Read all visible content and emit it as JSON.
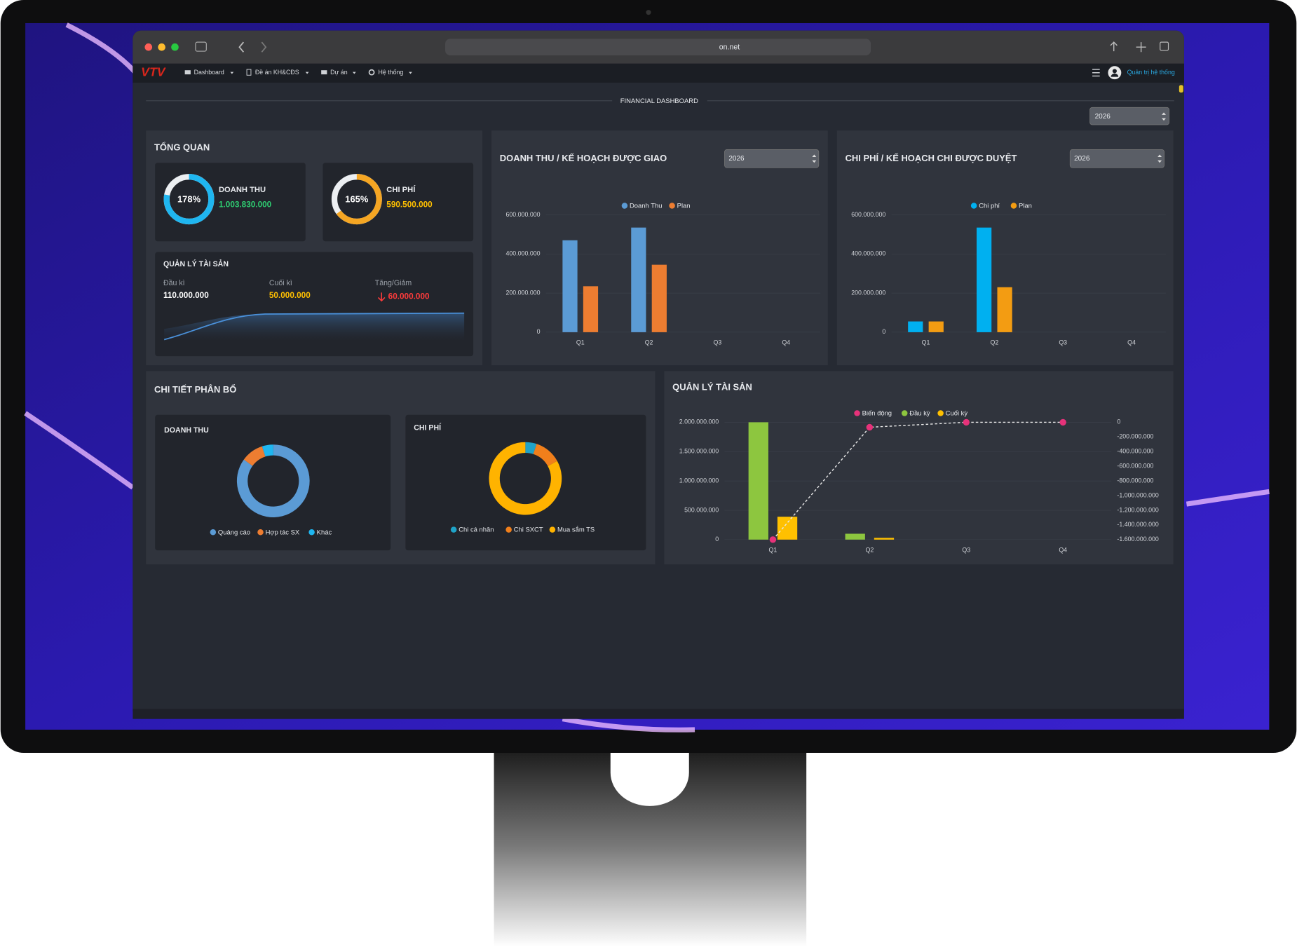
{
  "browser": {
    "url": "on.net"
  },
  "nav": {
    "logo": "VTV",
    "items": [
      "Dashboard",
      "Đề án KH&CĐS",
      "Dự án",
      "Hệ thống"
    ],
    "user": "Quản trị hệ thống"
  },
  "dashboard_title": "FINANCIAL DASHBOARD",
  "year": "2026",
  "overview": {
    "title": "TỔNG QUAN",
    "kpis": [
      {
        "name": "DOANH THU",
        "percent": 178,
        "percent_label": "178%",
        "amount": "1.003.830.000",
        "color": "#1fb6f0",
        "amount_color": "#2ecc71"
      },
      {
        "name": "CHI PHÍ",
        "percent": 165,
        "percent_label": "165%",
        "amount": "590.500.000",
        "color": "#f5a623",
        "amount_color": "#ffc000"
      }
    ],
    "assets": {
      "title": "QUẢN LÝ TÀI SẢN",
      "items": [
        {
          "label": "Đầu kì",
          "value": "110.000.000"
        },
        {
          "label": "Cuối kì",
          "value": "50.000.000"
        },
        {
          "label": "Tăng/Giảm",
          "value": "60.000.000"
        }
      ]
    }
  },
  "revenue_chart": {
    "type": "bar",
    "title": "DOANH THU / KẾ HOẠCH ĐƯỢC GIAO",
    "year": "2026",
    "categories": [
      "Q1",
      "Q2",
      "Q3",
      "Q4"
    ],
    "series": [
      {
        "name": "Doanh Thu",
        "color": "#5b9bd5",
        "values": [
          470000000,
          535000000,
          null,
          null
        ]
      },
      {
        "name": "Plan",
        "color": "#ed7d31",
        "values": [
          235000000,
          345000000,
          null,
          null
        ]
      }
    ],
    "ylim": [
      0,
      600000000
    ],
    "yticks": [
      0,
      {
        "value": 200000000,
        "label": "200.000.000"
      },
      {
        "value": 400000000,
        "label": "400.000.000"
      },
      {
        "value": 600000000,
        "label": "600.000.000"
      }
    ],
    "grid": true
  },
  "cost_chart": {
    "type": "bar",
    "title": "CHI PHÍ / KẾ HOẠCH CHI ĐƯỢC DUYỆT",
    "year": "2026",
    "categories": [
      "Q1",
      "Q2",
      "Q3",
      "Q4"
    ],
    "series": [
      {
        "name": "Chi phí",
        "color": "#00b0f0",
        "values": [
          55000000,
          535000000,
          null,
          null
        ]
      },
      {
        "name": "Plan",
        "color": "#f39c12",
        "values": [
          55000000,
          230000000,
          null,
          null
        ]
      }
    ],
    "ylim": [
      0,
      600000000
    ],
    "yticks": [
      0,
      {
        "value": 200000000,
        "label": "200.000.000"
      },
      {
        "value": 400000000,
        "label": "400.000.000"
      },
      {
        "value": 600000000,
        "label": "600.000.000"
      }
    ],
    "grid": true
  },
  "allocation": {
    "title": "CHI TIẾT PHÂN BỔ",
    "charts": [
      {
        "type": "pie",
        "title": "DOANH THU",
        "categories": [
          "Quảng cáo",
          "Hợp tác SX",
          "Khác"
        ],
        "values": [
          85,
          10,
          5
        ],
        "colors": [
          "#5b9bd5",
          "#ed7d31",
          "#1fb6f0"
        ]
      },
      {
        "type": "pie",
        "title": "CHI PHÍ",
        "categories": [
          "Chi cá nhân",
          "Chi SXCT",
          "Mua sắm TS"
        ],
        "values": [
          5,
          12,
          83
        ],
        "colors": [
          "#1fa3c8",
          "#f07f1b",
          "#ffb300"
        ]
      }
    ]
  },
  "asset_chart": {
    "type": "combo",
    "title": "QUẢN LÝ TÀI SẢN",
    "categories": [
      "Q1",
      "Q2",
      "Q3",
      "Q4"
    ],
    "series": [
      {
        "name": "Biến động",
        "color": "#e6327a",
        "axis": "y2",
        "values": [
          -1600000000,
          -68000000,
          0,
          0
        ]
      },
      {
        "name": "Đầu kỳ",
        "color": "#8dc63f",
        "values": [
          2000000000,
          100000000,
          null,
          null
        ]
      },
      {
        "name": "Cuối kỳ",
        "color": "#ffc000",
        "values": [
          390000000,
          30000000,
          null,
          null
        ]
      }
    ],
    "ylim": [
      0,
      2000000000
    ],
    "yticks": [
      0,
      {
        "value": 500000000,
        "label": "500.000.000"
      },
      {
        "value": 1000000000,
        "label": "1.000.000.000"
      },
      {
        "value": 1500000000,
        "label": "1.500.000.000"
      },
      {
        "value": 2000000000,
        "label": "2.000.000.000"
      }
    ],
    "y2lim": [
      -1600000000,
      0
    ],
    "y2ticks": [
      0,
      {
        "value": -200000000,
        "label": "-200.000.000"
      },
      {
        "value": -400000000,
        "label": "-400.000.000"
      },
      {
        "value": -600000000,
        "label": "-600.000.000"
      },
      {
        "value": -800000000,
        "label": "-800.000.000"
      },
      {
        "value": -1000000000,
        "label": "-1.000.000.000"
      },
      {
        "value": -1200000000,
        "label": "-1.200.000.000"
      },
      {
        "value": -1400000000,
        "label": "-1.400.000.000"
      },
      {
        "value": -1600000000,
        "label": "-1.600.000.000"
      }
    ],
    "grid": true
  }
}
